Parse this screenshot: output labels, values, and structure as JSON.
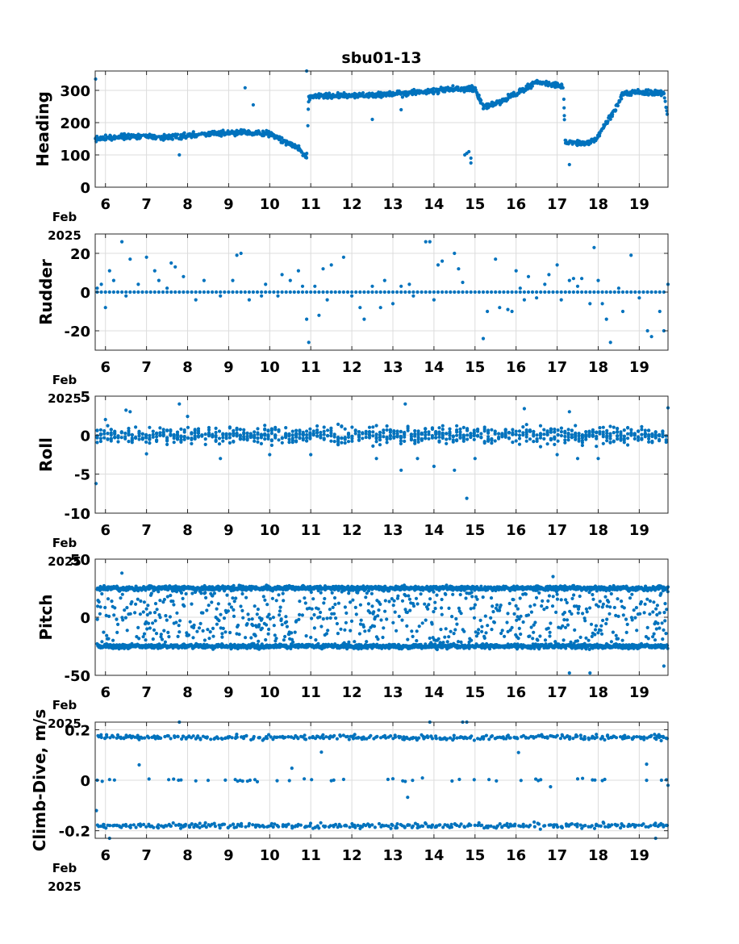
{
  "figure_title": "sbu01-13",
  "date_label": {
    "month": "Feb",
    "year": "2025"
  },
  "chart_data": [
    {
      "type": "scatter",
      "id": "heading",
      "title": "sbu01-13",
      "ylabel": "Heading",
      "xlim": [
        5.75,
        19.7
      ],
      "ylim": [
        0,
        360
      ],
      "xticks": [
        6,
        7,
        8,
        9,
        10,
        11,
        12,
        13,
        14,
        15,
        16,
        17,
        18,
        19
      ],
      "yticks": [
        0,
        100,
        200,
        300
      ],
      "grid": true,
      "color": "#0072bd",
      "trend": [
        [
          5.75,
          150
        ],
        [
          6.5,
          158
        ],
        [
          7.5,
          155
        ],
        [
          8.5,
          165
        ],
        [
          9.5,
          170
        ],
        [
          10,
          165
        ],
        [
          10.4,
          140
        ],
        [
          10.7,
          120
        ],
        [
          10.9,
          90
        ],
        [
          10.95,
          280
        ],
        [
          11.5,
          285
        ],
        [
          12.5,
          285
        ],
        [
          13.5,
          292
        ],
        [
          14,
          298
        ],
        [
          14.5,
          305
        ],
        [
          14.8,
          305
        ],
        [
          15.0,
          305
        ],
        [
          15.2,
          250
        ],
        [
          15.5,
          258
        ],
        [
          16,
          290
        ],
        [
          16.5,
          325
        ],
        [
          16.9,
          320
        ],
        [
          17.15,
          310
        ],
        [
          17.2,
          140
        ],
        [
          17.7,
          135
        ],
        [
          17.95,
          150
        ],
        [
          18.2,
          200
        ],
        [
          18.45,
          250
        ],
        [
          18.6,
          290
        ],
        [
          19,
          295
        ],
        [
          19.6,
          290
        ],
        [
          19.7,
          210
        ]
      ],
      "extra_points": [
        [
          5.76,
          335
        ],
        [
          9.4,
          308
        ],
        [
          9.6,
          255
        ],
        [
          10.9,
          360
        ],
        [
          14.8,
          105
        ],
        [
          14.85,
          110
        ],
        [
          14.9,
          90
        ],
        [
          14.75,
          100
        ],
        [
          14.9,
          75
        ],
        [
          17.3,
          70
        ],
        [
          7.8,
          100
        ],
        [
          12.5,
          210
        ],
        [
          13.2,
          240
        ]
      ],
      "spread": 12
    },
    {
      "type": "scatter",
      "id": "rudder",
      "ylabel": "Rudder",
      "xlim": [
        5.75,
        19.7
      ],
      "ylim": [
        -30,
        30
      ],
      "xticks": [
        6,
        7,
        8,
        9,
        10,
        11,
        12,
        13,
        14,
        15,
        16,
        17,
        18,
        19
      ],
      "yticks": [
        -20,
        0,
        20
      ],
      "grid": true,
      "color": "#0072bd",
      "baseline": 0,
      "extra_points": [
        [
          5.8,
          2
        ],
        [
          5.9,
          4
        ],
        [
          6.0,
          -8
        ],
        [
          6.1,
          11
        ],
        [
          6.2,
          6
        ],
        [
          6.4,
          26
        ],
        [
          6.5,
          -2
        ],
        [
          6.6,
          17
        ],
        [
          6.8,
          4
        ],
        [
          7.0,
          18
        ],
        [
          7.2,
          11
        ],
        [
          7.3,
          6
        ],
        [
          7.5,
          2
        ],
        [
          7.6,
          15
        ],
        [
          7.7,
          13
        ],
        [
          7.9,
          8
        ],
        [
          8.2,
          -4
        ],
        [
          8.4,
          6
        ],
        [
          8.8,
          -2
        ],
        [
          9.1,
          6
        ],
        [
          9.2,
          19
        ],
        [
          9.3,
          20
        ],
        [
          9.5,
          -4
        ],
        [
          9.8,
          -2
        ],
        [
          9.9,
          4
        ],
        [
          10.2,
          -2
        ],
        [
          10.3,
          9
        ],
        [
          10.5,
          6
        ],
        [
          10.7,
          11
        ],
        [
          10.8,
          3
        ],
        [
          10.9,
          -14
        ],
        [
          10.95,
          -26
        ],
        [
          11.1,
          3
        ],
        [
          11.2,
          -12
        ],
        [
          11.3,
          12
        ],
        [
          11.4,
          -4
        ],
        [
          11.5,
          14
        ],
        [
          11.8,
          18
        ],
        [
          12.0,
          -2
        ],
        [
          12.2,
          -8
        ],
        [
          12.3,
          -14
        ],
        [
          12.5,
          3
        ],
        [
          12.7,
          -8
        ],
        [
          12.8,
          6
        ],
        [
          13.0,
          -6
        ],
        [
          13.2,
          3
        ],
        [
          13.4,
          4
        ],
        [
          13.5,
          -2
        ],
        [
          13.8,
          26
        ],
        [
          13.9,
          26
        ],
        [
          14.0,
          -4
        ],
        [
          14.1,
          14
        ],
        [
          14.2,
          16
        ],
        [
          14.5,
          20
        ],
        [
          14.6,
          12
        ],
        [
          14.7,
          5
        ],
        [
          15.2,
          -24
        ],
        [
          15.3,
          -10
        ],
        [
          15.5,
          17
        ],
        [
          15.6,
          -8
        ],
        [
          15.8,
          -9
        ],
        [
          15.9,
          -10
        ],
        [
          16.0,
          11
        ],
        [
          16.1,
          2
        ],
        [
          16.2,
          -4
        ],
        [
          16.3,
          8
        ],
        [
          16.5,
          -3
        ],
        [
          16.7,
          4
        ],
        [
          16.8,
          9
        ],
        [
          17.0,
          14
        ],
        [
          17.1,
          -4
        ],
        [
          17.3,
          6
        ],
        [
          17.4,
          7
        ],
        [
          17.5,
          3
        ],
        [
          17.6,
          7
        ],
        [
          17.8,
          -6
        ],
        [
          17.9,
          23
        ],
        [
          18.0,
          6
        ],
        [
          18.1,
          -6
        ],
        [
          18.2,
          -14
        ],
        [
          18.3,
          -26
        ],
        [
          18.5,
          2
        ],
        [
          18.6,
          -10
        ],
        [
          18.8,
          19
        ],
        [
          19.0,
          -3
        ],
        [
          19.2,
          -20
        ],
        [
          19.3,
          -23
        ],
        [
          19.5,
          -10
        ],
        [
          19.6,
          -20
        ],
        [
          19.7,
          4
        ]
      ]
    },
    {
      "type": "scatter",
      "id": "roll",
      "ylabel": "Roll",
      "xlim": [
        5.75,
        19.7
      ],
      "ylim": [
        -10,
        5
      ],
      "xticks": [
        6,
        7,
        8,
        9,
        10,
        11,
        12,
        13,
        14,
        15,
        16,
        17,
        18,
        19
      ],
      "yticks": [
        -10,
        -5,
        0,
        5
      ],
      "grid": true,
      "color": "#0072bd",
      "baseline": 0,
      "spread": 1.6,
      "extra_points": [
        [
          5.77,
          -6.2
        ],
        [
          6.0,
          2
        ],
        [
          6.5,
          3.2
        ],
        [
          6.6,
          3
        ],
        [
          7.0,
          -2.4
        ],
        [
          7.8,
          4
        ],
        [
          8.0,
          2.4
        ],
        [
          8.8,
          -3
        ],
        [
          10.0,
          -2.5
        ],
        [
          11.0,
          -2.5
        ],
        [
          12.6,
          -3
        ],
        [
          13.2,
          -4.5
        ],
        [
          13.3,
          4
        ],
        [
          13.6,
          -3
        ],
        [
          14.0,
          -4
        ],
        [
          14.5,
          -4.5
        ],
        [
          14.8,
          -8.1
        ],
        [
          15.0,
          -3
        ],
        [
          16.2,
          3.4
        ],
        [
          17.0,
          -2.5
        ],
        [
          17.3,
          3
        ],
        [
          17.5,
          -3
        ],
        [
          18.0,
          -3
        ],
        [
          19.7,
          3.5
        ]
      ]
    },
    {
      "type": "scatter",
      "id": "pitch",
      "ylabel": "Pitch",
      "xlim": [
        5.75,
        19.7
      ],
      "ylim": [
        -50,
        50
      ],
      "xticks": [
        6,
        7,
        8,
        9,
        10,
        11,
        12,
        13,
        14,
        15,
        16,
        17,
        18,
        19
      ],
      "yticks": [
        -50,
        0,
        50
      ],
      "grid": true,
      "color": "#0072bd",
      "bands": [
        25,
        -25
      ],
      "band_spread": 3,
      "extra_points": [
        [
          6.4,
          38
        ],
        [
          16.9,
          35
        ],
        [
          17.3,
          -48
        ],
        [
          17.8,
          -48
        ],
        [
          19.6,
          -42
        ]
      ]
    },
    {
      "type": "scatter",
      "id": "climb",
      "ylabel": "Climb-Dive, m/s",
      "xlim": [
        5.75,
        19.7
      ],
      "ylim": [
        -0.23,
        0.23
      ],
      "xticks": [
        6,
        7,
        8,
        9,
        10,
        11,
        12,
        13,
        14,
        15,
        16,
        17,
        18,
        19
      ],
      "yticks": [
        -0.2,
        0,
        0.2
      ],
      "grid": true,
      "color": "#0072bd",
      "bands": [
        0.17,
        -0.18,
        0
      ],
      "band_spread": 0.015,
      "extra_points": [
        [
          5.78,
          -0.12
        ],
        [
          5.8,
          0
        ],
        [
          7.8,
          0.23
        ],
        [
          13.9,
          0.23
        ],
        [
          14.7,
          0.23
        ],
        [
          14.8,
          0.24
        ],
        [
          19.4,
          -0.23
        ],
        [
          19.7,
          -0.02
        ],
        [
          6.1,
          -0.23
        ]
      ]
    }
  ]
}
